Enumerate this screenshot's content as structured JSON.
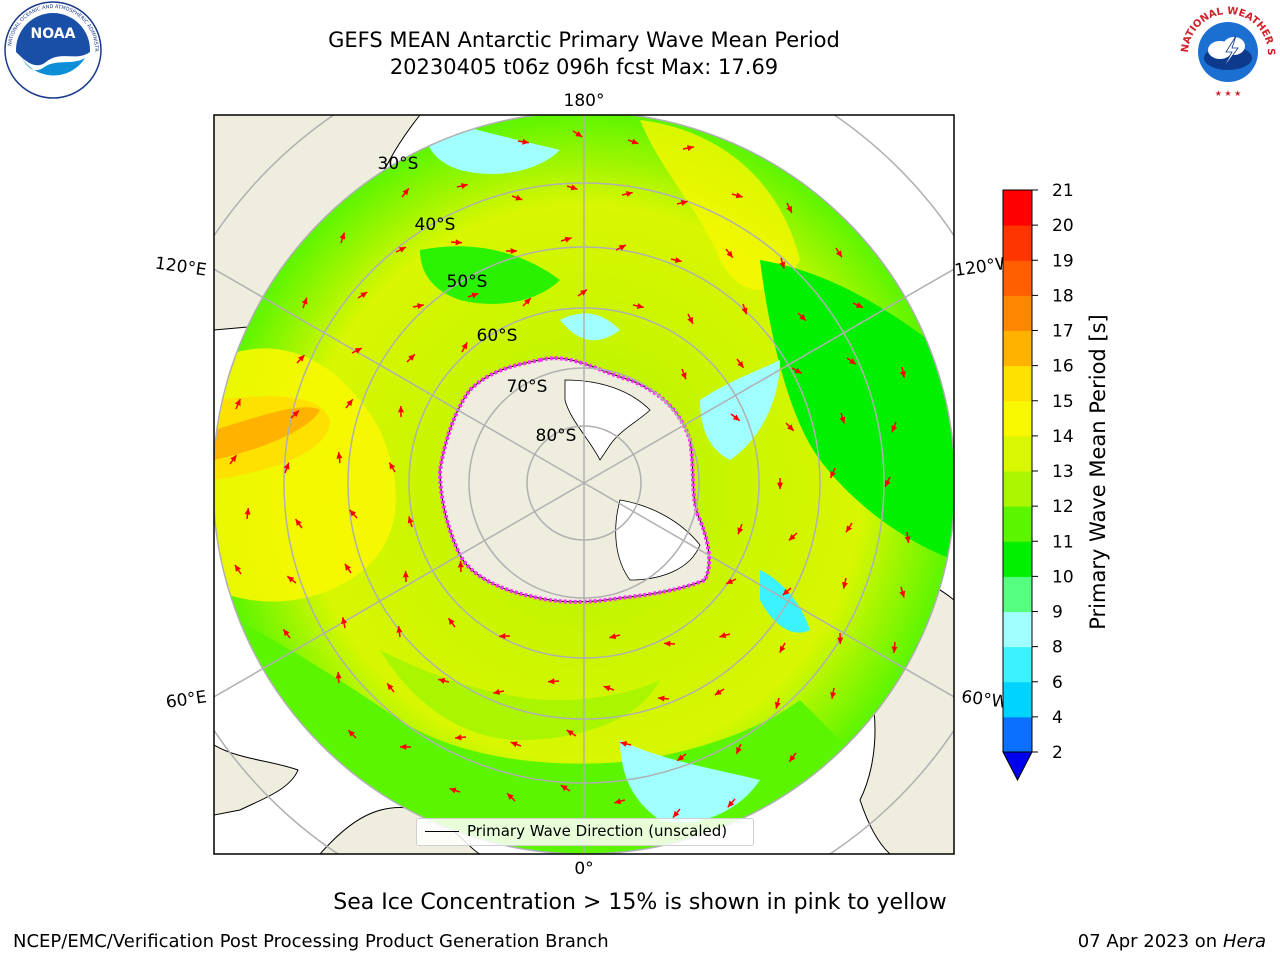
{
  "title": {
    "line1": "GEFS MEAN Antarctic Primary Wave Mean Period",
    "line2": "20230405 t06z 096h fcst   Max: 17.69"
  },
  "logos": {
    "left": {
      "name": "noaa-logo",
      "text": "NOAA",
      "ring_text": "NATIONAL OCEANIC AND ATMOSPHERIC ADMINISTRATION · U.S. DEPARTMENT OF COMMERCE"
    },
    "right": {
      "name": "nws-logo",
      "ring_text": "NATIONAL WEATHER SERVICE"
    }
  },
  "map": {
    "projection": "south-polar-stereographic",
    "longitude_labels": {
      "top": "180°",
      "bottom": "0°",
      "left_upper": "120°E",
      "left_lower": "60°E",
      "right_upper": "120°W",
      "right_lower": "60°W"
    },
    "latitude_labels": [
      "30°S",
      "40°S",
      "50°S",
      "60°S",
      "70°S",
      "80°S"
    ],
    "legend_label": "Primary Wave Direction (unscaled)",
    "arrow_color": "#ff0000",
    "land_color": "#efedde",
    "ice_edge_colors": [
      "#ff33ff",
      "#ffaa00",
      "#ffff33"
    ]
  },
  "colorbar": {
    "label": "Primary Wave Mean Period [s]",
    "ticks": [
      "2",
      "4",
      "6",
      "8",
      "9",
      "10",
      "11",
      "12",
      "13",
      "14",
      "15",
      "16",
      "17",
      "18",
      "19",
      "20",
      "21"
    ],
    "colors": [
      "#0a70ff",
      "#00d3ff",
      "#3cf2ff",
      "#a0ffff",
      "#55ff80",
      "#00f000",
      "#5cf500",
      "#aaf500",
      "#d8f700",
      "#f8f800",
      "#ffe100",
      "#ffb300",
      "#ff8600",
      "#ff5f00",
      "#ff3500",
      "#ff0000"
    ],
    "under_color": "#0000ee"
  },
  "footer": {
    "note": "Sea Ice Concentration > 15% is shown in pink to yellow",
    "left": "NCEP/EMC/Verification Post Processing Product Generation Branch",
    "right_date": "07 Apr 2023 on ",
    "right_machine": "Hera"
  }
}
